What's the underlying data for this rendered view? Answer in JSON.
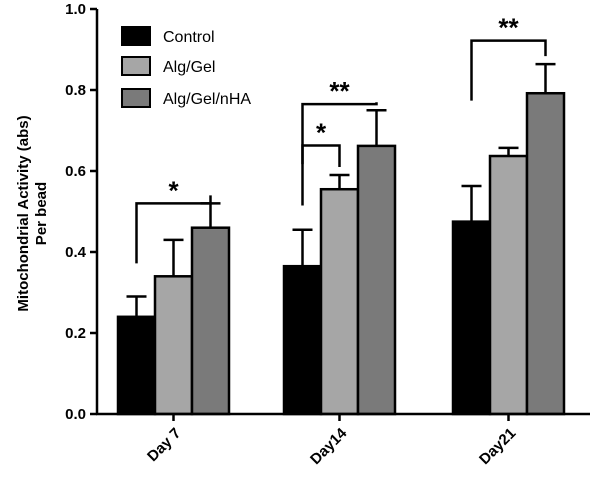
{
  "chart_data": {
    "type": "bar",
    "ylabel_lines": [
      "Mitochondrial Activity (abs)",
      "Per bead"
    ],
    "xlabel": "",
    "ylim": [
      0.0,
      1.0
    ],
    "yticks": [
      "0.0",
      "0.2",
      "0.4",
      "0.6",
      "0.8",
      "1.0"
    ],
    "categories": [
      "Day 7",
      "Day14",
      "Day21"
    ],
    "series": [
      {
        "name": "Control",
        "color": "#000000",
        "values": [
          0.24,
          0.365,
          0.475
        ],
        "errors": [
          0.05,
          0.09,
          0.088
        ]
      },
      {
        "name": "Alg/Gel",
        "color": "#a6a6a6",
        "values": [
          0.34,
          0.555,
          0.637
        ],
        "errors": [
          0.09,
          0.035,
          0.02
        ]
      },
      {
        "name": "Alg/Gel/nHA",
        "color": "#7a7a7a",
        "values": [
          0.46,
          0.662,
          0.792
        ],
        "errors": [
          0.06,
          0.088,
          0.072
        ]
      }
    ],
    "significance": [
      {
        "category": 0,
        "from_series": 0,
        "to_series": 2,
        "level": 0.52,
        "label": "*"
      },
      {
        "category": 1,
        "from_series": 0,
        "to_series": 1,
        "level": 0.663,
        "label": "*"
      },
      {
        "category": 1,
        "from_series": 0,
        "to_series": 2,
        "level": 0.765,
        "label": "**"
      },
      {
        "category": 2,
        "from_series": 0,
        "to_series": 2,
        "level": 0.922,
        "label": "**"
      }
    ],
    "legend_position": "top-left",
    "grid": false
  }
}
